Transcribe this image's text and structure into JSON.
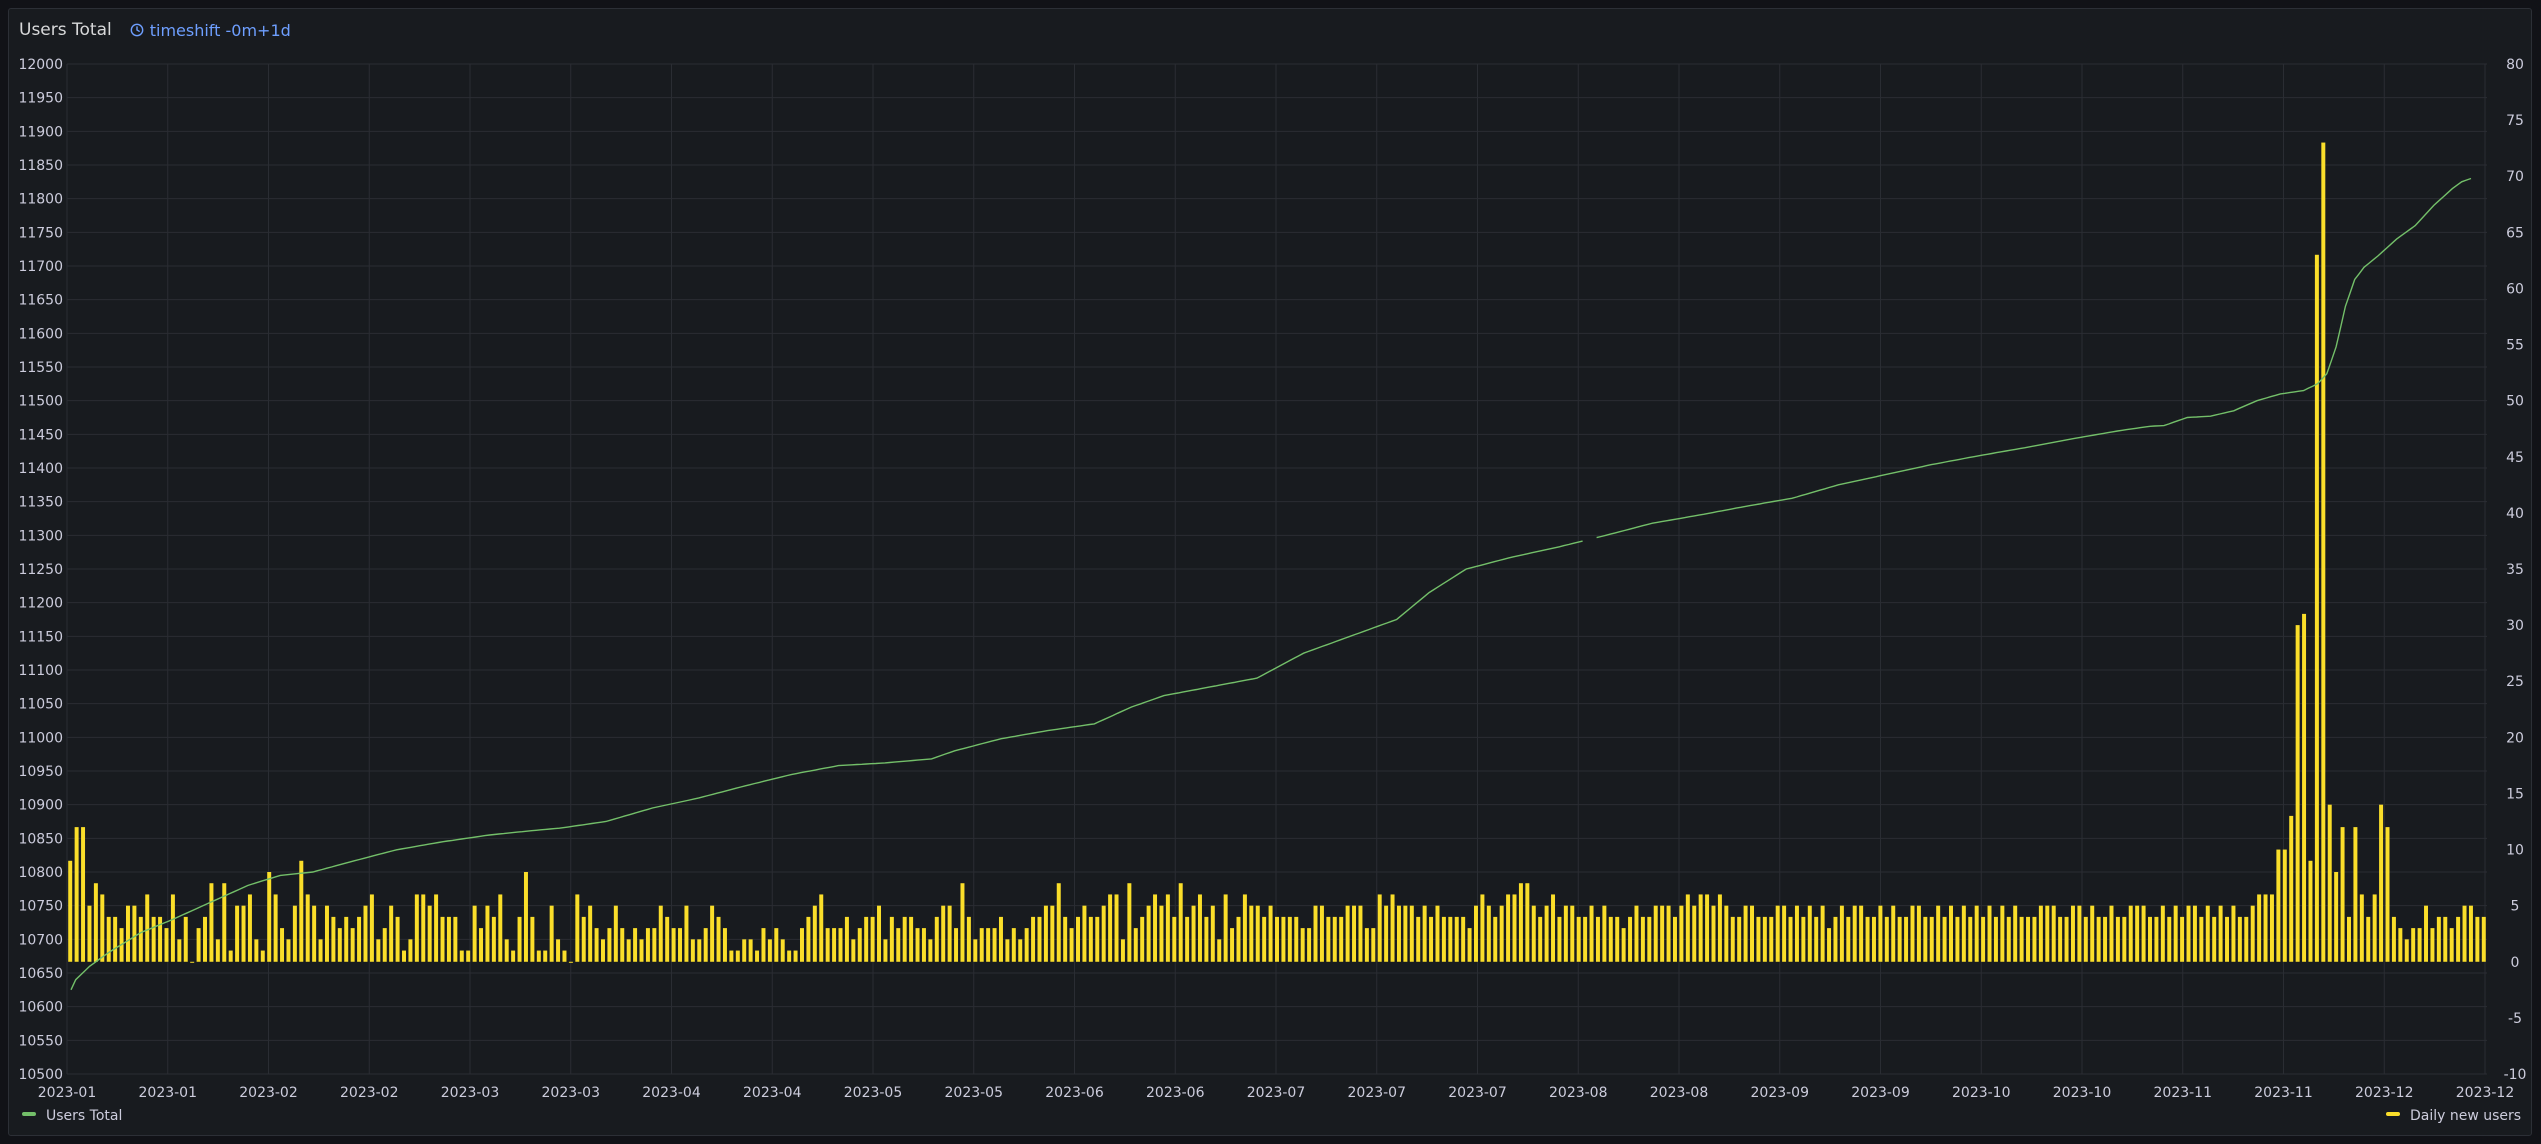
{
  "panel": {
    "title": "Users Total",
    "timeshift": "timeshift -0m+1d"
  },
  "colors": {
    "line": "#73bf69",
    "bars": "#fade2a",
    "grid": "#2a2d33",
    "background": "#181b1f",
    "timeshift": "#6e9fff"
  },
  "chart_data": {
    "type": "bar+line",
    "title": "Users Total",
    "x_tick_labels": [
      "2023-01",
      "2023-01",
      "2023-02",
      "2023-02",
      "2023-03",
      "2023-03",
      "2023-04",
      "2023-04",
      "2023-05",
      "2023-05",
      "2023-06",
      "2023-06",
      "2023-07",
      "2023-07",
      "2023-07",
      "2023-08",
      "2023-08",
      "2023-09",
      "2023-09",
      "2023-10",
      "2023-10",
      "2023-11",
      "2023-11",
      "2023-12",
      "2023-12"
    ],
    "days": 365,
    "left_axis": {
      "label": "",
      "range": [
        10500,
        12000
      ],
      "ticks": [
        12000,
        11950,
        11900,
        11850,
        11800,
        11750,
        11700,
        11650,
        11600,
        11550,
        11500,
        11450,
        11400,
        11350,
        11300,
        11250,
        11200,
        11150,
        11100,
        11050,
        11000,
        10950,
        10900,
        10850,
        10800,
        10750,
        10700,
        10650,
        10600,
        10550,
        10500
      ]
    },
    "right_axis": {
      "label": "",
      "range": [
        -10,
        80
      ],
      "ticks": [
        80,
        75,
        70,
        65,
        60,
        55,
        50,
        45,
        40,
        35,
        30,
        25,
        20,
        15,
        10,
        5,
        0,
        -5,
        -10
      ]
    },
    "series": [
      {
        "name": "Users Total",
        "type": "line",
        "axis": "left",
        "gap_days": [
          325,
          328
        ],
        "anchors": [
          [
            0,
            10625
          ],
          [
            1,
            10640
          ],
          [
            4,
            10660
          ],
          [
            8,
            10680
          ],
          [
            15,
            10710
          ],
          [
            22,
            10730
          ],
          [
            30,
            10755
          ],
          [
            38,
            10780
          ],
          [
            45,
            10795
          ],
          [
            52,
            10800
          ],
          [
            60,
            10815
          ],
          [
            70,
            10833
          ],
          [
            80,
            10845
          ],
          [
            90,
            10855
          ],
          [
            100,
            10862
          ],
          [
            105,
            10865
          ],
          [
            115,
            10875
          ],
          [
            125,
            10895
          ],
          [
            135,
            10910
          ],
          [
            145,
            10928
          ],
          [
            155,
            10945
          ],
          [
            165,
            10958
          ],
          [
            175,
            10962
          ],
          [
            185,
            10968
          ],
          [
            190,
            10980
          ],
          [
            200,
            10998
          ],
          [
            210,
            11010
          ],
          [
            220,
            11020
          ],
          [
            228,
            11045
          ],
          [
            235,
            11062
          ],
          [
            245,
            11075
          ],
          [
            255,
            11088
          ],
          [
            265,
            11125
          ],
          [
            275,
            11150
          ],
          [
            285,
            11175
          ],
          [
            292,
            11215
          ],
          [
            300,
            11250
          ],
          [
            310,
            11268
          ],
          [
            320,
            11283
          ],
          [
            330,
            11300
          ],
          [
            340,
            11318
          ],
          [
            350,
            11330
          ],
          [
            360,
            11343
          ],
          [
            370,
            11355
          ],
          [
            380,
            11375
          ],
          [
            390,
            11390
          ],
          [
            400,
            11405
          ],
          [
            410,
            11418
          ],
          [
            420,
            11430
          ],
          [
            430,
            11443
          ],
          [
            440,
            11455
          ],
          [
            447,
            11462
          ],
          [
            450,
            11463
          ],
          [
            455,
            11475
          ],
          [
            460,
            11477
          ],
          [
            465,
            11485
          ],
          [
            470,
            11500
          ],
          [
            475,
            11510
          ],
          [
            480,
            11515
          ],
          [
            483,
            11525
          ],
          [
            485,
            11540
          ],
          [
            487,
            11580
          ],
          [
            489,
            11640
          ],
          [
            491,
            11680
          ],
          [
            493,
            11698
          ],
          [
            496,
            11715
          ],
          [
            500,
            11740
          ],
          [
            504,
            11760
          ],
          [
            508,
            11790
          ],
          [
            512,
            11815
          ],
          [
            514,
            11825
          ],
          [
            516,
            11830
          ]
        ]
      },
      {
        "name": "Daily new users",
        "type": "bar",
        "axis": "right",
        "values": [
          9,
          12,
          12,
          5,
          7,
          6,
          4,
          4,
          3,
          5,
          5,
          4,
          6,
          4,
          4,
          3,
          6,
          2,
          4,
          0,
          3,
          4,
          7,
          2,
          7,
          1,
          5,
          5,
          6,
          2,
          1,
          8,
          6,
          3,
          2,
          5,
          9,
          6,
          5,
          2,
          5,
          4,
          3,
          4,
          3,
          4,
          5,
          6,
          2,
          3,
          5,
          4,
          1,
          2,
          6,
          6,
          5,
          6,
          4,
          4,
          4,
          1,
          1,
          5,
          3,
          5,
          4,
          6,
          2,
          1,
          4,
          8,
          4,
          1,
          1,
          5,
          2,
          1,
          0,
          6,
          4,
          5,
          3,
          2,
          3,
          5,
          3,
          2,
          3,
          2,
          3,
          3,
          5,
          4,
          3,
          3,
          5,
          2,
          2,
          3,
          5,
          4,
          3,
          1,
          1,
          2,
          2,
          1,
          3,
          2,
          3,
          2,
          1,
          1,
          3,
          4,
          5,
          6,
          3,
          3,
          3,
          4,
          2,
          3,
          4,
          4,
          5,
          2,
          4,
          3,
          4,
          4,
          3,
          3,
          2,
          4,
          5,
          5,
          3,
          7,
          4,
          2,
          3,
          3,
          3,
          4,
          2,
          3,
          2,
          3,
          4,
          4,
          5,
          5,
          7,
          4,
          3,
          4,
          5,
          4,
          4,
          5,
          6,
          6,
          2,
          7,
          3,
          4,
          5,
          6,
          5,
          6,
          4,
          7,
          4,
          5,
          6,
          4,
          5,
          2,
          6,
          3,
          4,
          6,
          5,
          5,
          4,
          5,
          4,
          4,
          4,
          4,
          3,
          3,
          5,
          5,
          4,
          4,
          4,
          5,
          5,
          5,
          3,
          3,
          6,
          5,
          6,
          5,
          5,
          5,
          4,
          5,
          4,
          5,
          4,
          4,
          4,
          4,
          3,
          5,
          6,
          5,
          4,
          5,
          6,
          6,
          7,
          7,
          5,
          4,
          5,
          6,
          4,
          5,
          5,
          4,
          4,
          5,
          4,
          5,
          4,
          4,
          3,
          4,
          5,
          4,
          4,
          5,
          5,
          5,
          4,
          5,
          6,
          5,
          6,
          6,
          5,
          6,
          5,
          4,
          4,
          5,
          5,
          4,
          4,
          4,
          5,
          5,
          4,
          5,
          4,
          5,
          4,
          5,
          3,
          4,
          5,
          4,
          5,
          5,
          4,
          4,
          5,
          4,
          5,
          4,
          4,
          5,
          5,
          4,
          4,
          5,
          4,
          5,
          4,
          5,
          4,
          5,
          4,
          5,
          4,
          5,
          4,
          5,
          4,
          4,
          4,
          5,
          5,
          5,
          4,
          4,
          5,
          5,
          4,
          5,
          4,
          4,
          5,
          4,
          4,
          5,
          5,
          5,
          4,
          4,
          5,
          4,
          5,
          4,
          5,
          5,
          4,
          5,
          4,
          5,
          4,
          5,
          4,
          4,
          5,
          6,
          6,
          6,
          10,
          10,
          13,
          30,
          31,
          9,
          63,
          73,
          14,
          8,
          12,
          4,
          12,
          6,
          4,
          6,
          14,
          12,
          4,
          3,
          2,
          3,
          3,
          5,
          3,
          4,
          4,
          3,
          4,
          5,
          5,
          4,
          4
        ]
      }
    ],
    "legend": [
      {
        "label": "Users Total",
        "position": "bottom-left"
      },
      {
        "label": "Daily new users",
        "position": "bottom-right"
      }
    ],
    "grid": true
  }
}
